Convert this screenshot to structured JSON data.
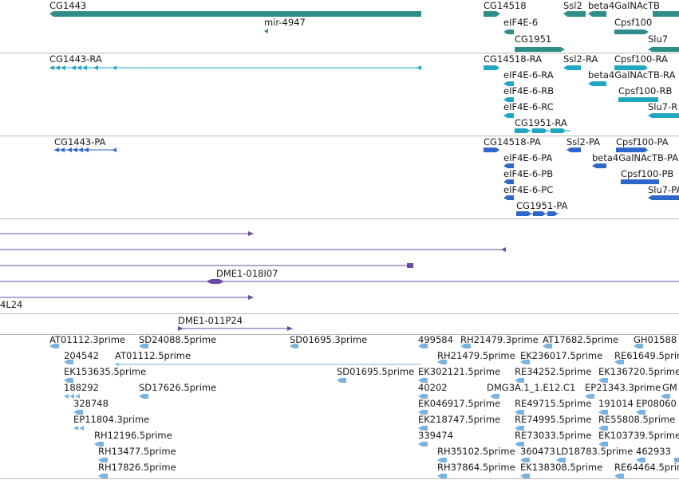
{
  "colors": {
    "gene": "#2f8f88",
    "transcript": "#20a6c0",
    "protein": "#2e66cc",
    "clone": "#6a4aa4",
    "est": "#7ab4de",
    "separator": "#b8b8b8",
    "text": "#1a1a1a"
  },
  "genes": {
    "labels": [
      "CG1443",
      "CG14518",
      "Ssl2",
      "beta4GalNAcTB",
      "mir-4947",
      "eIF4E-6",
      "Cpsf100",
      "CG1951",
      "Slu7"
    ]
  },
  "transcripts": {
    "labels": [
      "CG1443-RA",
      "CG14518-RA",
      "Ssl2-RA",
      "Cpsf100-RA",
      "eIF4E-6-RA",
      "beta4GalNAcTB-RA",
      "eIF4E-6-RB",
      "Cpsf100-RB",
      "eIF4E-6-RC",
      "Slu7-R",
      "CG1951-RA"
    ]
  },
  "proteins": {
    "labels": [
      "CG1443-PA",
      "CG14518-PA",
      "Ssl2-PA",
      "Cpsf100-PA",
      "eIF4E-6-PA",
      "beta4GalNAcTB-PA",
      "eIF4E-6-PB",
      "Cpsf100-PB",
      "eIF4E-6-PC",
      "Slu7-PA",
      "CG1951-PA"
    ]
  },
  "clones": {
    "labels": [
      "DME1-018I07",
      "4L24",
      "DME1-011P24"
    ]
  },
  "ests": {
    "labels": [
      "AT01112.3prime",
      "SD24088.5prime",
      "SD01695.3prime",
      "499584",
      "RH21479.3prime",
      "AT17682.5prime",
      "GH01588",
      "204542",
      "AT01112.5prime",
      "RH21479.5prime",
      "EK236017.5prime",
      "RE61649.5prime",
      "EK153635.5prime",
      "SD01695.5prime",
      "EK302121.5prime",
      "RE34252.5prime",
      "EK136720.5prime",
      "188292",
      "SD17626.5prime",
      "40202",
      "DMG3A.1_1.E12.C1",
      "EP21343.3prime",
      "GM",
      "328748",
      "EK046917.5prime",
      "RE49715.5prime",
      "191014",
      "EP08060",
      "EP11804.3prime",
      "EK218747.5prime",
      "RE74995.5prime",
      "RE55808.5prime",
      "RH12196.5prime",
      "339474",
      "RE73033.5prime",
      "EK103739.5prime",
      "RH13477.5prime",
      "RH35102.5prime",
      "360473",
      "LD18783.5prime",
      "462933",
      "RH17826.5prime",
      "RH37864.5prime",
      "EK138308.5prime",
      "RE64464.5prime"
    ]
  }
}
